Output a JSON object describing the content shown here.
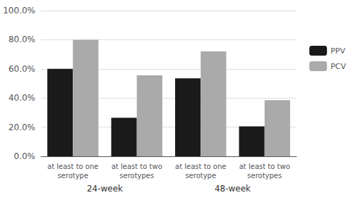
{
  "chart_data": {
    "type": "bar",
    "categories": [
      "at least to one\nserotype",
      "at least to two\nserotypes",
      "at least to one\nserotype",
      "at least to two\nserotypes"
    ],
    "series": [
      {
        "name": "PPV",
        "color": "#1a1a1a",
        "values": [
          60.0,
          26.5,
          53.5,
          20.5
        ]
      },
      {
        "name": "PCV",
        "color": "#aaaaaa",
        "values": [
          80.0,
          55.5,
          72.0,
          38.5
        ]
      }
    ],
    "annotations": [
      "24-week",
      "48-week"
    ],
    "ylim": [
      0,
      100
    ],
    "yticks": [
      {
        "value": 0,
        "label": "0.0%"
      },
      {
        "value": 20,
        "label": "20.0%"
      },
      {
        "value": 40,
        "label": "40.0%"
      },
      {
        "value": 60,
        "label": "60.0%"
      },
      {
        "value": 80,
        "label": "80.0%"
      },
      {
        "value": 100,
        "label": "100.0%"
      }
    ],
    "grid": true,
    "legend": "upper right"
  }
}
